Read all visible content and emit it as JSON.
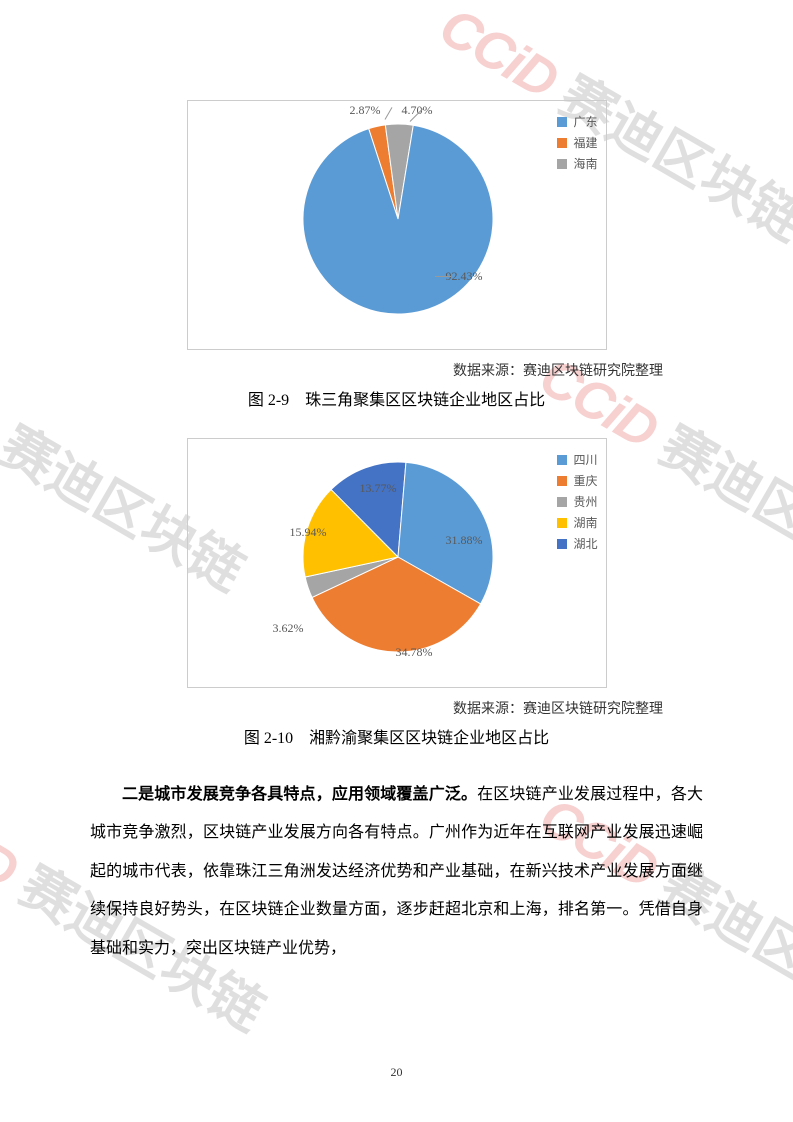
{
  "watermark": {
    "ccid": "CCiD",
    "cn": "赛迪区块链"
  },
  "chart1": {
    "type": "pie",
    "border_color": "#cccccc",
    "background_color": "#ffffff",
    "slices": [
      {
        "name": "广东",
        "value": 92.43,
        "label": "92.43%",
        "color": "#5b9bd5"
      },
      {
        "name": "福建",
        "value": 2.87,
        "label": "2.87%",
        "color": "#ed7d31"
      },
      {
        "name": "海南",
        "value": 4.7,
        "label": "4.70%",
        "color": "#a5a5a5"
      }
    ],
    "legend_text_color": "#595959",
    "label_fontsize": 12,
    "source": "数据来源：赛迪区块链研究院整理",
    "caption": "图 2-9　珠三角聚集区区块链企业地区占比"
  },
  "chart2": {
    "type": "pie",
    "border_color": "#cccccc",
    "background_color": "#ffffff",
    "slices": [
      {
        "name": "四川",
        "value": 31.88,
        "label": "31.88%",
        "color": "#5b9bd5"
      },
      {
        "name": "重庆",
        "value": 34.78,
        "label": "34.78%",
        "color": "#ed7d31"
      },
      {
        "name": "贵州",
        "value": 3.62,
        "label": "3.62%",
        "color": "#a5a5a5"
      },
      {
        "name": "湖南",
        "value": 15.94,
        "label": "15.94%",
        "color": "#ffc000"
      },
      {
        "name": "湖北",
        "value": 13.77,
        "label": "13.77%",
        "color": "#4472c4"
      }
    ],
    "legend_text_color": "#595959",
    "label_fontsize": 12,
    "source": "数据来源：赛迪区块链研究院整理",
    "caption": "图 2-10　湘黔渝聚集区区块链企业地区占比"
  },
  "paragraph": {
    "bold": "二是城市发展竞争各具特点，应用领域覆盖广泛。",
    "rest": "在区块链产业发展过程中，各大城市竞争激烈，区块链产业发展方向各有特点。广州作为近年在互联网产业发展迅速崛起的城市代表，依靠珠江三角洲发达经济优势和产业基础，在新兴技术产业发展方面继续保持良好势头，在区块链企业数量方面，逐步赶超北京和上海，排名第一。凭借自身基础和实力，突出区块链产业优势，"
  },
  "page_number": "20"
}
